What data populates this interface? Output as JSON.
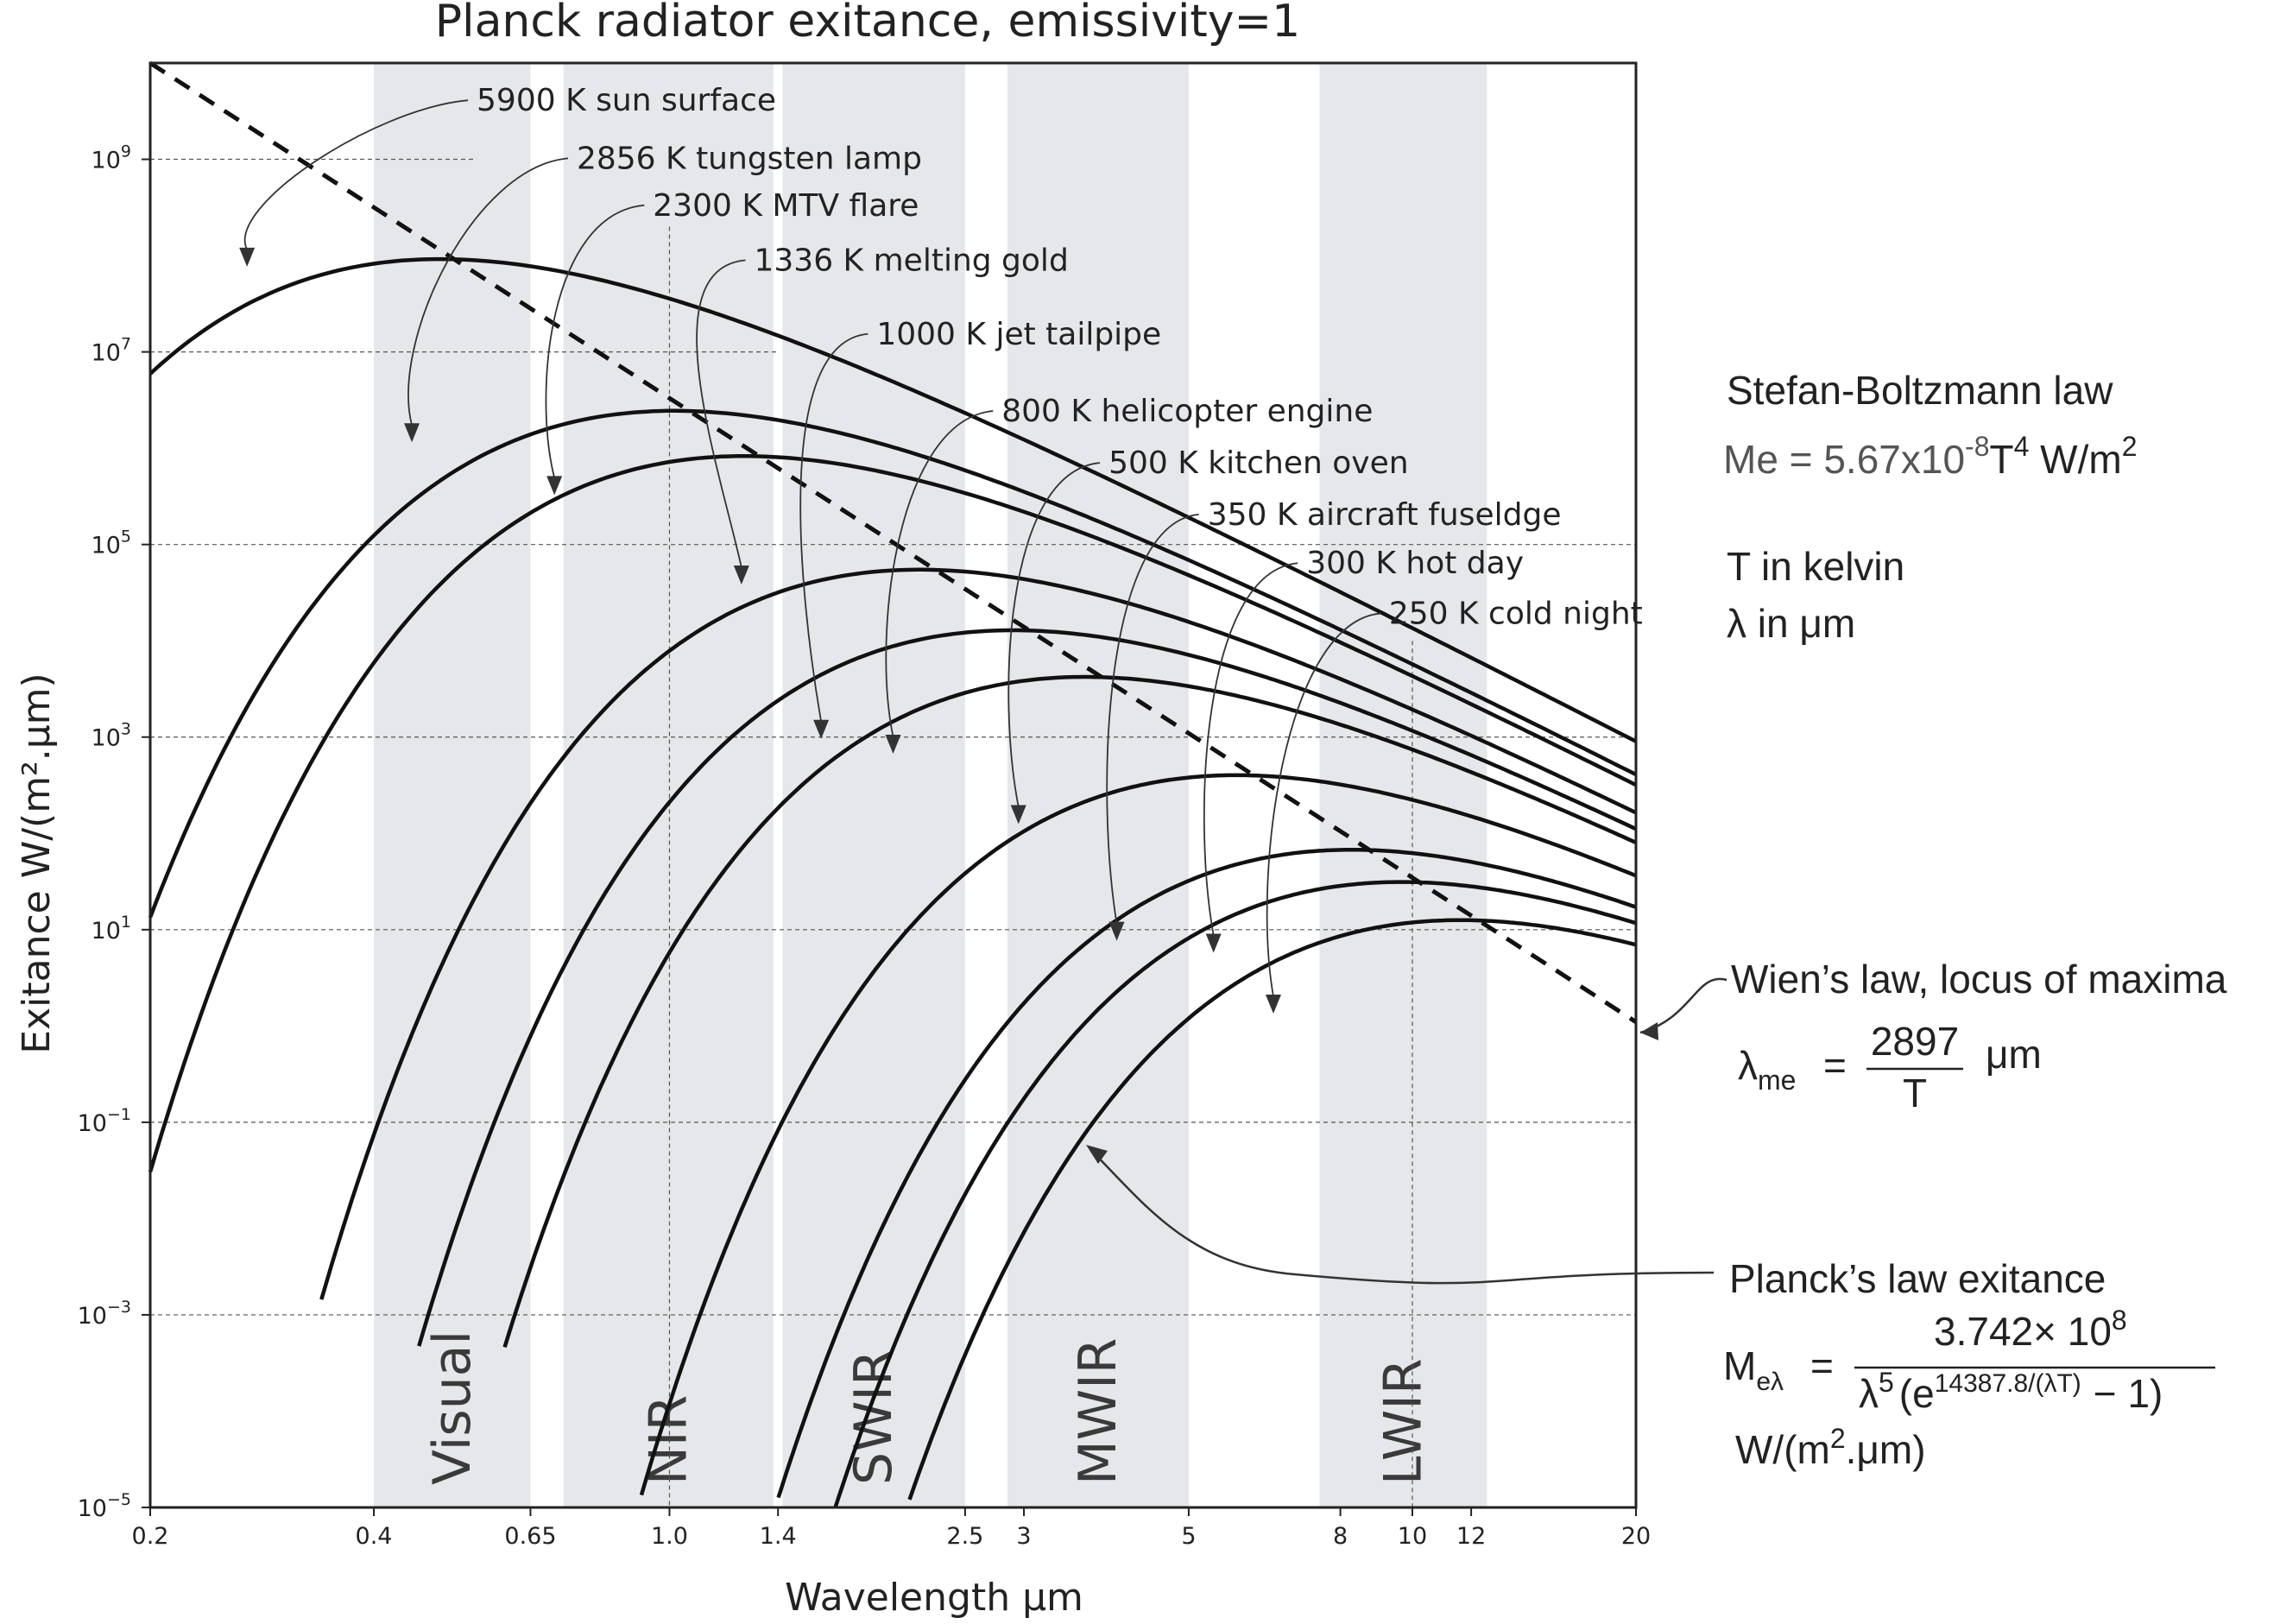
{
  "chart_data": {
    "type": "line",
    "title": "Planck radiator exitance, emissivity=1",
    "xlabel": "Wavelength μm",
    "ylabel": "Exitance W/(m².μm)",
    "x_scale": "log",
    "y_scale": "log",
    "xlim": [
      0.2,
      20
    ],
    "ylim": [
      1e-05,
      10000000000.0
    ],
    "x_ticks": [
      {
        "value": 0.2,
        "label": "0.2"
      },
      {
        "value": 0.4,
        "label": "0.4"
      },
      {
        "value": 0.65,
        "label": "0.65"
      },
      {
        "value": 1.0,
        "label": "1.0"
      },
      {
        "value": 1.4,
        "label": "1.4"
      },
      {
        "value": 2.5,
        "label": "2.5"
      },
      {
        "value": 3,
        "label": "3"
      },
      {
        "value": 5,
        "label": "5"
      },
      {
        "value": 8,
        "label": "8"
      },
      {
        "value": 10,
        "label": "10"
      },
      {
        "value": 12,
        "label": "12"
      },
      {
        "value": 20,
        "label": "20"
      }
    ],
    "y_ticks": [
      {
        "exp": -5,
        "base": "10",
        "sup": "−5"
      },
      {
        "exp": -3,
        "base": "10",
        "sup": "−3"
      },
      {
        "exp": -1,
        "base": "10",
        "sup": "−1"
      },
      {
        "exp": 1,
        "base": "10",
        "sup": "1"
      },
      {
        "exp": 3,
        "base": "10",
        "sup": "3"
      },
      {
        "exp": 5,
        "base": "10",
        "sup": "5"
      },
      {
        "exp": 7,
        "base": "10",
        "sup": "7"
      },
      {
        "exp": 9,
        "base": "10",
        "sup": "9"
      }
    ],
    "bands": [
      {
        "label": "Visual",
        "x0": 0.4,
        "x1": 0.65
      },
      {
        "label": "NIR",
        "x0": 0.72,
        "x1": 1.38
      },
      {
        "label": "SWIR",
        "x0": 1.42,
        "x1": 2.5
      },
      {
        "label": "MWIR",
        "x0": 2.85,
        "x1": 5.0
      },
      {
        "label": "LWIR",
        "x0": 7.5,
        "x1": 12.6
      }
    ],
    "series": [
      {
        "temperature": 5900,
        "label": "5900 K sun surface",
        "label_value": [
          0.55,
          3200000000.0
        ],
        "arrow_to": [
          0.27,
          80000000.0
        ],
        "x_start": 0.2
      },
      {
        "temperature": 2856,
        "label": "2856 K tungsten lamp",
        "label_value": [
          0.75,
          800000000.0
        ],
        "arrow_to": [
          0.45,
          1200000.0
        ],
        "x_start": 0.2
      },
      {
        "temperature": 2300,
        "label": "2300 K MTV flare",
        "label_value": [
          0.95,
          260000000.0
        ],
        "arrow_to": [
          0.7,
          340000.0
        ],
        "x_start": 0.2
      },
      {
        "temperature": 1336,
        "label": "1336 K melting gold",
        "label_value": [
          1.3,
          70000000.0
        ],
        "arrow_to": [
          1.25,
          40000.0
        ],
        "x_start": 0.34
      },
      {
        "temperature": 1000,
        "label": "1000 K jet tailpipe",
        "label_value": [
          1.9,
          12000000.0
        ],
        "arrow_to": [
          1.6,
          1000.0
        ],
        "x_start": 0.46
      },
      {
        "temperature": 800,
        "label": "800 K helicopter engine",
        "label_value": [
          2.8,
          1900000.0
        ],
        "arrow_to": [
          2.0,
          700.0
        ],
        "x_start": 0.6
      },
      {
        "temperature": 500,
        "label": "500 K kitchen oven",
        "label_value": [
          3.9,
          550000.0
        ],
        "arrow_to": [
          2.95,
          130.0
        ],
        "x_start": 0.8
      },
      {
        "temperature": 350,
        "label": "350 K aircraft fuseldge",
        "label_value": [
          5.3,
          160000.0
        ],
        "arrow_to": [
          4.0,
          8
        ],
        "x_start": 1.03
      },
      {
        "temperature": 300,
        "label": "300 K hot day",
        "label_value": [
          7.2,
          50000.0
        ],
        "arrow_to": [
          5.4,
          6
        ],
        "x_start": 1.3
      },
      {
        "temperature": 250,
        "label": "250 K cold night",
        "label_value": [
          9.3,
          15000.0
        ],
        "arrow_to": [
          6.5,
          1.4
        ],
        "x_start": 1.5
      }
    ],
    "wien_locus": {
      "from": [
        0.2,
        10000000000.0
      ],
      "to": [
        20,
        1.1
      ]
    }
  },
  "side_text": {
    "stefan_title": "Stefan-Boltzmann law",
    "stefan_eq_lhs": "Me",
    "stefan_eq_mid": " = 5.67x10",
    "stefan_eq_exp": "-8",
    "stefan_eq_t": "T",
    "stefan_eq_t_exp": "4",
    "stefan_eq_units": " W/m",
    "stefan_eq_units_exp": "2",
    "t_kelvin": "T in kelvin",
    "lambda_um": "λ in  μm",
    "wien_title": "Wien’s law, locus of maxima",
    "wien_lhs": "λ",
    "wien_sub": "me",
    "wien_eq": "=",
    "wien_num": "2897",
    "wien_den": "T",
    "wien_units": "μm",
    "planck_title": "Planck’s law exitance",
    "planck_lhs": "M",
    "planck_sub": "eλ",
    "planck_eq": "=",
    "planck_num": "3.742× 10",
    "planck_num_exp": "8",
    "planck_den_a": "λ",
    "planck_den_a_exp": "5",
    "planck_den_b": "(e",
    "planck_den_b_exp": "14387.8/(λT)",
    "planck_den_c": "− 1)",
    "planck_units_a": "W/(m",
    "planck_units_exp": "2",
    "planck_units_b": ".μm)"
  }
}
